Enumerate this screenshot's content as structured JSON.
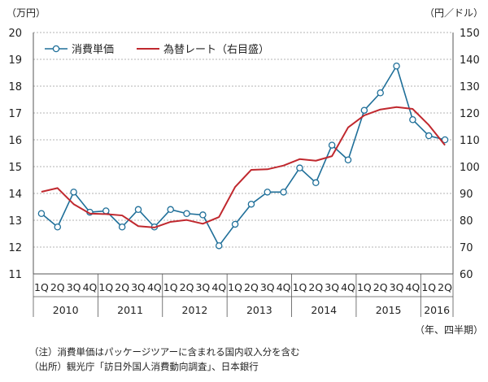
{
  "chart_data": {
    "type": "line",
    "left_axis_unit": "（万円）",
    "right_axis_unit": "（円／ドル）",
    "x_axis_unit": "（年、四半期）",
    "categories": [
      "1Q",
      "2Q",
      "3Q",
      "4Q",
      "1Q",
      "2Q",
      "3Q",
      "4Q",
      "1Q",
      "2Q",
      "3Q",
      "4Q",
      "1Q",
      "2Q",
      "3Q",
      "4Q",
      "1Q",
      "2Q",
      "3Q",
      "4Q",
      "1Q",
      "2Q",
      "3Q",
      "4Q",
      "1Q",
      "2Q"
    ],
    "year_groups": [
      {
        "label": "2010",
        "count": 4
      },
      {
        "label": "2011",
        "count": 4
      },
      {
        "label": "2012",
        "count": 4
      },
      {
        "label": "2013",
        "count": 4
      },
      {
        "label": "2014",
        "count": 4
      },
      {
        "label": "2015",
        "count": 4
      },
      {
        "label": "2016",
        "count": 2
      }
    ],
    "ylim_left": [
      11,
      20
    ],
    "yticks_left": [
      11,
      12,
      13,
      14,
      15,
      16,
      17,
      18,
      19,
      20
    ],
    "ylim_right": [
      60,
      150
    ],
    "yticks_right": [
      60,
      70,
      80,
      90,
      100,
      110,
      120,
      130,
      140,
      150
    ],
    "grid": true,
    "legend_position": "top-left",
    "series": [
      {
        "name": "消費単価",
        "axis": "left",
        "color": "#1f6f99",
        "marker": "circle",
        "values": [
          13.25,
          12.75,
          14.05,
          13.3,
          13.35,
          12.75,
          13.4,
          12.75,
          13.4,
          13.25,
          13.2,
          12.05,
          12.85,
          13.6,
          14.05,
          14.05,
          14.95,
          14.4,
          15.8,
          15.25,
          17.1,
          17.75,
          18.75,
          16.75,
          16.15,
          16.0
        ]
      },
      {
        "name": "為替レート（右目盛）",
        "axis": "right",
        "color": "#c0282e",
        "marker": "none",
        "values": [
          90.6,
          92.0,
          86.0,
          82.5,
          82.3,
          81.8,
          77.8,
          77.3,
          79.4,
          80.1,
          78.7,
          81.2,
          92.4,
          98.8,
          99.0,
          100.4,
          102.8,
          102.2,
          103.9,
          114.6,
          119.1,
          121.3,
          122.2,
          121.5,
          115.5,
          108.0
        ]
      }
    ]
  },
  "notes": {
    "note1": "（注）消費単価はパッケージツアーに含まれる国内収入分を含む",
    "note2": "（出所）観光庁「訪日外国人消費動向調査」、日本銀行"
  }
}
